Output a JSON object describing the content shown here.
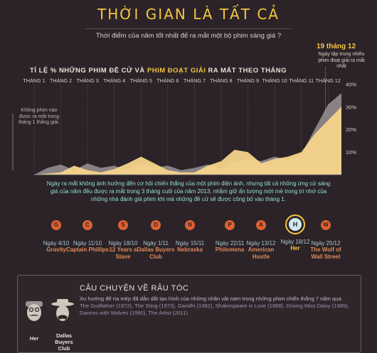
{
  "header": {
    "title": "THỜI GIAN LÀ TẤT CẢ",
    "subtitle": "Thời điểm của năm tốt nhất để ra mắt một bộ phim sáng giá ?"
  },
  "chart_heading": {
    "part1": "TỈ LỆ % NHỮNG PHIM ĐỀ CỬ VÀ ",
    "part2": "PHIM ĐOẠT GIẢI",
    "part3": " RA MẮT THEO THÁNG"
  },
  "callout": {
    "date": "19 tháng 12",
    "text": "Ngày tập trung nhiều phim đoạt giải ra mắt nhất"
  },
  "note_left": "Không phim nào được ra mắt trong tháng 1 thắng giải.",
  "description": "Ngày ra mắt không ảnh hưởng đến cơ hội chiến thắng của một phim điện ảnh, nhưng tất cả những ứng cử sáng giá của năm đều được ra mắt trong 3 tháng cuối của năm 2013, nhằm giữ ấn tượng mới mẻ trong trí nhớ của những nhà đánh giá phim khi mà những đề cử sẽ được công bố vào tháng 1.",
  "chart_data": {
    "type": "area",
    "categories": [
      "THÁNG 1",
      "THÁNG 2",
      "THÁNG 3",
      "THÁNG 4",
      "THÁNG 5",
      "THÁNG 6",
      "THÁNG 7",
      "THÁNG 8",
      "THÁNG 9",
      "THÁNG 10",
      "THÁNG 11",
      "THÁNG 12"
    ],
    "y_ticks": [
      "10%",
      "20%",
      "30%",
      "40%"
    ],
    "ylim": [
      0,
      42
    ],
    "series": [
      {
        "name": "NHỮNG PHIM ĐỀ CỬ",
        "color": "#9a9396",
        "x": [
          1,
          1.5,
          2,
          2.5,
          3,
          3.5,
          4,
          4.5,
          5,
          5.5,
          6,
          6.5,
          7,
          7.5,
          8,
          8.5,
          9,
          9.5,
          10,
          10.5,
          11,
          11.5,
          12,
          12.5
        ],
        "values": [
          0,
          3,
          4.5,
          2,
          5,
          3,
          4,
          2,
          5,
          3,
          4,
          2,
          3,
          4.5,
          2.5,
          5.5,
          7,
          6,
          8,
          6.5,
          9,
          20,
          31,
          36
        ]
      },
      {
        "name": "PHIM ĐOẠT GIẢI",
        "color": "#f5d48a",
        "x": [
          1,
          1.5,
          2,
          2.5,
          3,
          3.5,
          4,
          4.5,
          5,
          5.5,
          6,
          6.5,
          7,
          7.5,
          8,
          8.5,
          9,
          9.5,
          10,
          10.5,
          11,
          11.5,
          12,
          12.5
        ],
        "values": [
          0,
          0.5,
          1,
          4,
          2,
          1,
          2.5,
          5,
          8,
          5,
          2,
          1,
          1,
          4,
          6,
          11,
          10,
          5,
          7,
          8,
          10,
          18,
          24,
          30
        ]
      }
    ],
    "grid": false
  },
  "films": [
    {
      "letter": "G",
      "date": "Ngày 4/10",
      "name": "Gravity"
    },
    {
      "letter": "C",
      "date": "Ngày 11/10",
      "name": "Captain Phillips"
    },
    {
      "letter": "S",
      "date": "Ngày 18/10",
      "name": "12 Years a Slave"
    },
    {
      "letter": "D",
      "date": "Ngày 1/11",
      "name": "Dallas Buyers Club"
    },
    {
      "letter": "N",
      "date": "Ngày 15/11",
      "name": "Nebraska"
    },
    {
      "letter": "P",
      "date": "Ngày 22/11",
      "name": "Philomena"
    },
    {
      "letter": "A",
      "date": "Ngày 13/12",
      "name": "American Hustle"
    },
    {
      "letter": "H",
      "date": "Ngày 18/12",
      "name": "Her",
      "highlight": true
    },
    {
      "letter": "W",
      "date": "Ngày 25/12",
      "name": "The Wolf of Wall Street"
    }
  ],
  "colors": {
    "accent": "#f5c542",
    "orange": "#e06030",
    "teal": "#8fe0d6",
    "nominee": "#9a9396"
  },
  "story": {
    "title": "CÂU CHUYỆN VỀ RÂU TÓC",
    "lead": "Xu hướng để ria mép đã dẫn dắt tạo hình của những nhân vật nam trong những phim chiến thắng 7 năm qua.",
    "films": "The Godfather (1972), The Sting (1973), Gandhi (1982), Shakespeare in Love (1988), Driving Miss Daisy (1989), Dances with Wolves (1990), The Artist (2011)",
    "faces": [
      {
        "label": "Her",
        "letter": "H"
      },
      {
        "label": "Dallas Buyers Club",
        "letter": "D"
      }
    ]
  }
}
